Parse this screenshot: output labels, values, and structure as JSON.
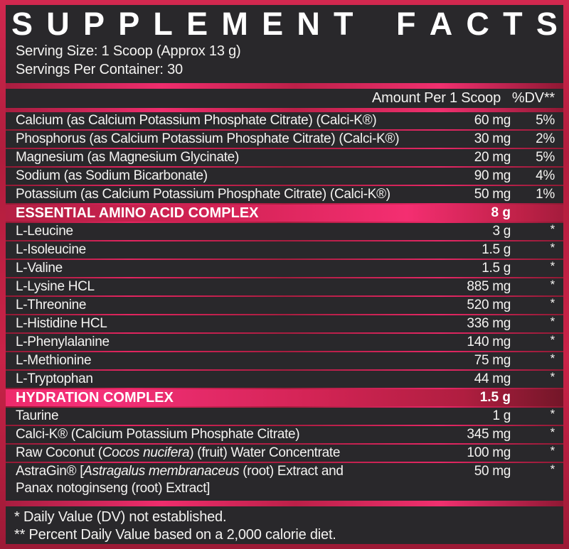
{
  "title": "SUPPLEMENT FACTS",
  "serving": {
    "size": "Serving Size: 1 Scoop (Approx 13 g)",
    "per_container": "Servings Per Container: 30"
  },
  "columns": {
    "amount": "Amount Per 1 Scoop",
    "dv": "%DV**"
  },
  "rows": [
    {
      "type": "nutrient",
      "name": [
        {
          "t": "Calcium (as Calcium Potassium Phosphate Citrate) (Calci-K®)"
        }
      ],
      "amount": "60 mg",
      "dv": "5%"
    },
    {
      "type": "nutrient",
      "name": [
        {
          "t": "Phosphorus (as Calcium Potassium Phosphate Citrate) (Calci-K®)"
        }
      ],
      "amount": "30 mg",
      "dv": "2%"
    },
    {
      "type": "nutrient",
      "name": [
        {
          "t": "Magnesium (as Magnesium Glycinate)"
        }
      ],
      "amount": "20 mg",
      "dv": "5%"
    },
    {
      "type": "nutrient",
      "name": [
        {
          "t": "Sodium (as Sodium Bicarbonate)"
        }
      ],
      "amount": "90 mg",
      "dv": "4%"
    },
    {
      "type": "nutrient",
      "name": [
        {
          "t": "Potassium (as Calcium Potassium Phosphate Citrate) (Calci-K®)"
        }
      ],
      "amount": "50 mg",
      "dv": "1%"
    },
    {
      "type": "section",
      "style": "eaa",
      "name": [
        {
          "t": "ESSENTIAL AMINO ACID COMPLEX"
        }
      ],
      "amount": "8 g",
      "dv": ""
    },
    {
      "type": "nutrient",
      "name": [
        {
          "t": "L-Leucine"
        }
      ],
      "amount": "3 g",
      "dv": "*"
    },
    {
      "type": "nutrient",
      "name": [
        {
          "t": "L-Isoleucine"
        }
      ],
      "amount": "1.5 g",
      "dv": "*"
    },
    {
      "type": "nutrient",
      "name": [
        {
          "t": "L-Valine"
        }
      ],
      "amount": "1.5 g",
      "dv": "*"
    },
    {
      "type": "nutrient",
      "name": [
        {
          "t": "L-Lysine HCL"
        }
      ],
      "amount": "885 mg",
      "dv": "*"
    },
    {
      "type": "nutrient",
      "name": [
        {
          "t": "L-Threonine"
        }
      ],
      "amount": "520 mg",
      "dv": "*"
    },
    {
      "type": "nutrient",
      "name": [
        {
          "t": "L-Histidine HCL"
        }
      ],
      "amount": "336 mg",
      "dv": "*"
    },
    {
      "type": "nutrient",
      "name": [
        {
          "t": "L-Phenylalanine"
        }
      ],
      "amount": "140 mg",
      "dv": "*"
    },
    {
      "type": "nutrient",
      "name": [
        {
          "t": "L-Methionine"
        }
      ],
      "amount": "75 mg",
      "dv": "*"
    },
    {
      "type": "nutrient",
      "name": [
        {
          "t": "L-Tryptophan"
        }
      ],
      "amount": "44 mg",
      "dv": "*"
    },
    {
      "type": "section",
      "style": "hyd",
      "name": [
        {
          "t": "HYDRATION COMPLEX"
        }
      ],
      "amount": "1.5 g",
      "dv": ""
    },
    {
      "type": "nutrient",
      "name": [
        {
          "t": "Taurine"
        }
      ],
      "amount": "1 g",
      "dv": "*"
    },
    {
      "type": "nutrient",
      "name": [
        {
          "t": "Calci-K® (Calcium Potassium Phosphate Citrate)"
        }
      ],
      "amount": "345 mg",
      "dv": "*"
    },
    {
      "type": "nutrient",
      "name": [
        {
          "t": "Raw Coconut ("
        },
        {
          "t": "Cocos nucifera",
          "i": true
        },
        {
          "t": ") (fruit) Water Concentrate"
        }
      ],
      "amount": "100 mg",
      "dv": "*"
    },
    {
      "type": "nutrient",
      "name": [
        {
          "t": "AstraGin® ["
        },
        {
          "t": "Astragalus membranaceus",
          "i": true
        },
        {
          "t": " (root) Extract and"
        }
      ],
      "name2": [
        {
          "t": "Panax notoginseng",
          "i": true
        },
        {
          "t": " (root) Extract]"
        }
      ],
      "amount": "50 mg",
      "dv": "*"
    }
  ],
  "footnotes": [
    "* Daily Value (DV) not established.",
    "** Percent Daily Value based on a 2,000 calorie diet."
  ],
  "colors": {
    "accent_pink": "#f0306f",
    "crimson": "#c22149",
    "dark_crimson": "#9e1b39",
    "panel_bg": "#29282b",
    "text": "#f4f3f1"
  }
}
